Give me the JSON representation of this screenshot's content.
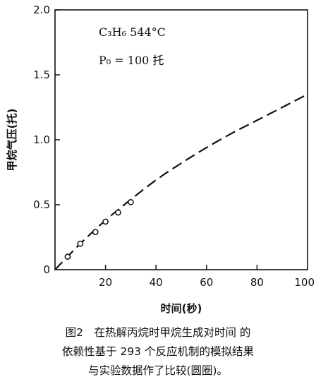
{
  "chart_data": {
    "type": "line",
    "title": "",
    "xlabel": "时间(秒)",
    "ylabel": "甲烷气压(托)",
    "xlim": [
      0,
      100
    ],
    "ylim": [
      0,
      2.0
    ],
    "x_ticks": [
      "0",
      "20",
      "40",
      "60",
      "80",
      "100"
    ],
    "y_ticks": [
      "0",
      "0.5",
      "1.0",
      "1.5",
      "2.0"
    ],
    "annotations": [
      "C₃H₆ 544°C",
      "P₀ = 100 托"
    ],
    "series": [
      {
        "style": "dashed",
        "x": [
          0,
          10,
          20,
          30,
          40,
          50,
          60,
          70,
          80,
          90,
          100
        ],
        "y": [
          0,
          0.2,
          0.38,
          0.54,
          0.69,
          0.82,
          0.94,
          1.05,
          1.15,
          1.25,
          1.35
        ]
      },
      {
        "style": "open-circles",
        "x": [
          5,
          10,
          16,
          20,
          25,
          30
        ],
        "y": [
          0.1,
          0.2,
          0.29,
          0.37,
          0.44,
          0.52
        ]
      }
    ]
  },
  "caption": {
    "line1": "图2　在热解丙烷时甲烷生成对时间 的",
    "line2": "依赖性基于 293 个反应机制的模拟结果",
    "line3": "与实验数据作了比较(圆圈)。"
  }
}
